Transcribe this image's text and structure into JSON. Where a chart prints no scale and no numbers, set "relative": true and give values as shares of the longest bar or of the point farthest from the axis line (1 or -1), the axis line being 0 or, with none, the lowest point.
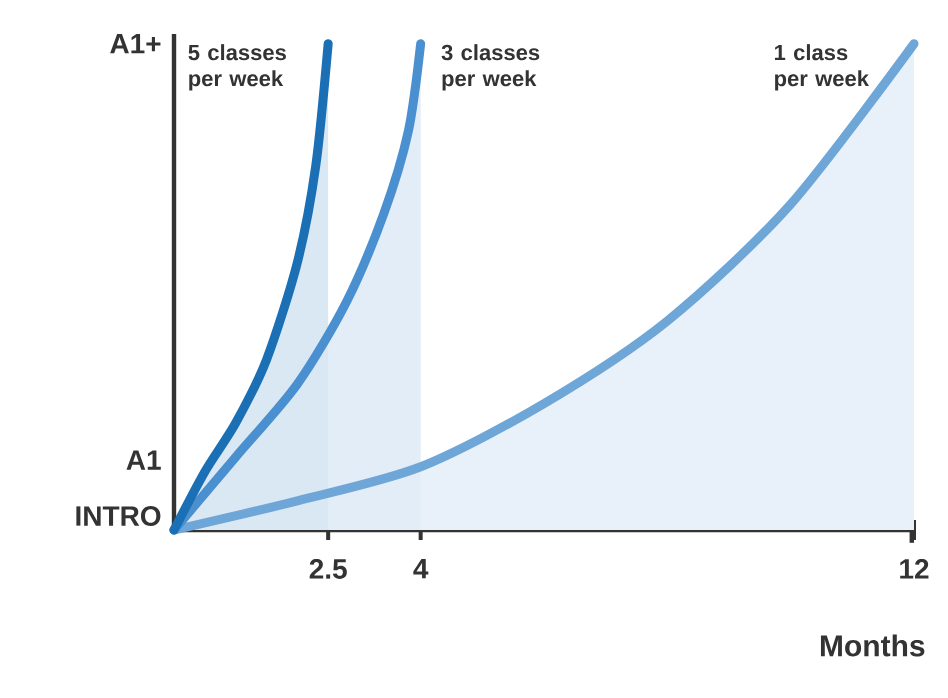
{
  "chart_data": {
    "type": "area",
    "xlabel": "Months",
    "xlim": [
      0,
      12
    ],
    "xticks": [
      2.5,
      4,
      12
    ],
    "relative": true,
    "annotations": [
      "A1+",
      "A1",
      "INTRO"
    ],
    "series": [
      {
        "name": "5 classes per week",
        "color": "#1a6fb5",
        "x": [
          0,
          0.5,
          1,
          1.5,
          2,
          2.3,
          2.5
        ],
        "values": [
          0,
          0.12,
          0.22,
          0.35,
          0.55,
          0.75,
          1.0
        ]
      },
      {
        "name": "3 classes per week",
        "color": "#4a90d0",
        "x": [
          0,
          1,
          2,
          2.8,
          3.4,
          3.8,
          4
        ],
        "values": [
          0,
          0.15,
          0.3,
          0.47,
          0.65,
          0.82,
          1.0
        ]
      },
      {
        "name": "1 class per week",
        "color": "#6ea6d8",
        "x": [
          0,
          2,
          4,
          6,
          8,
          10,
          12
        ],
        "values": [
          0,
          0.06,
          0.13,
          0.26,
          0.43,
          0.67,
          1.0
        ]
      }
    ],
    "legend": false,
    "grid": false,
    "marker": "none",
    "line_style": "solid"
  }
}
